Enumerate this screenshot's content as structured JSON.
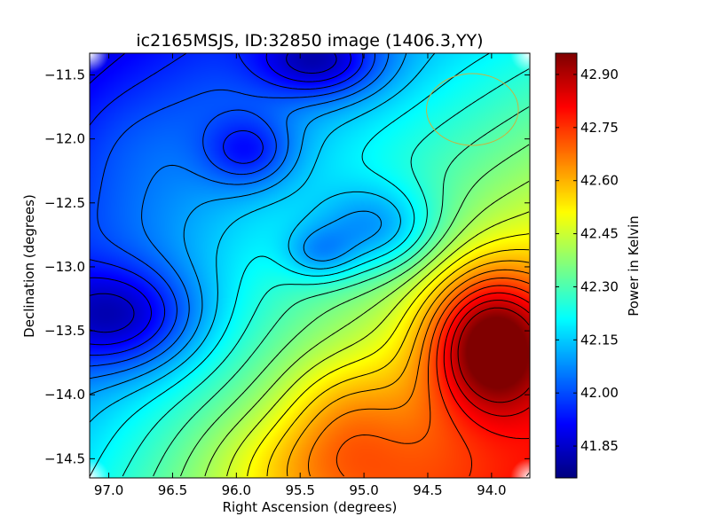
{
  "chart_data": {
    "type": "heatmap",
    "title": "ic2165MSJS, ID:32850 image (1406.3,YY)",
    "xlabel": "Right Ascension (degrees)",
    "ylabel": "Declination (degrees)",
    "colorbar_label": "Power in Kelvin",
    "xlim": [
      97.15,
      93.7
    ],
    "ylim": [
      -14.65,
      -11.33
    ],
    "x_ticks": [
      97.0,
      96.5,
      96.0,
      95.5,
      95.0,
      94.5,
      94.0
    ],
    "x_tick_labels": [
      "97.0",
      "96.5",
      "96.0",
      "95.5",
      "95.0",
      "94.5",
      "94.0"
    ],
    "y_ticks": [
      -11.5,
      -12.0,
      -12.5,
      -13.0,
      -13.5,
      -14.0,
      -14.5
    ],
    "y_tick_labels": [
      "−11.5",
      "−12.0",
      "−12.5",
      "−13.0",
      "−13.5",
      "−14.0",
      "−14.5"
    ],
    "colorbar_ticks": [
      41.85,
      42.0,
      42.15,
      42.3,
      42.45,
      42.6,
      42.75,
      42.9
    ],
    "colorbar_tick_labels": [
      "41.85",
      "42.00",
      "42.15",
      "42.30",
      "42.45",
      "42.60",
      "42.75",
      "42.90"
    ],
    "color_range": [
      41.76,
      42.96
    ],
    "colormap": "jet",
    "contour_levels": [
      41.85,
      41.9,
      41.95,
      42.0,
      42.05,
      42.1,
      42.15,
      42.2,
      42.25,
      42.3,
      42.35,
      42.4,
      42.45,
      42.5,
      42.55,
      42.6,
      42.65,
      42.7,
      42.75,
      42.8,
      42.85,
      42.9
    ],
    "field_features": [
      {
        "ra": 96.9,
        "dec": -13.4,
        "value": 41.82,
        "spread_ra": 0.45,
        "spread_dec": 0.3
      },
      {
        "ra": 95.35,
        "dec": -11.4,
        "value": 41.83,
        "spread_ra": 0.35,
        "spread_dec": 0.2
      },
      {
        "ra": 95.9,
        "dec": -12.1,
        "value": 41.91,
        "spread_ra": 0.25,
        "spread_dec": 0.2
      },
      {
        "ra": 96.9,
        "dec": -12.0,
        "value": 42.0,
        "spread_ra": 0.4,
        "spread_dec": 0.35
      },
      {
        "ra": 94.9,
        "dec": -12.7,
        "value": 42.06,
        "spread_ra": 0.35,
        "spread_dec": 0.25
      },
      {
        "ra": 95.35,
        "dec": -12.9,
        "value": 42.1,
        "spread_ra": 0.2,
        "spread_dec": 0.15
      },
      {
        "ra": 94.0,
        "dec": -13.6,
        "value": 42.95,
        "spread_ra": 0.35,
        "spread_dec": 0.4
      },
      {
        "ra": 95.3,
        "dec": -14.55,
        "value": 42.55,
        "spread_ra": 0.6,
        "spread_dec": 0.3
      },
      {
        "ra": 95.15,
        "dec": -14.1,
        "value": 42.5,
        "spread_ra": 0.35,
        "spread_dec": 0.3
      }
    ],
    "beam_circle": {
      "ra": 94.15,
      "dec": -11.77,
      "radius_deg": 0.36,
      "color": "#c8b240"
    },
    "grid": false,
    "colors": {
      "contour": "#000000",
      "axes": "#000000",
      "background": "#ffffff"
    }
  }
}
